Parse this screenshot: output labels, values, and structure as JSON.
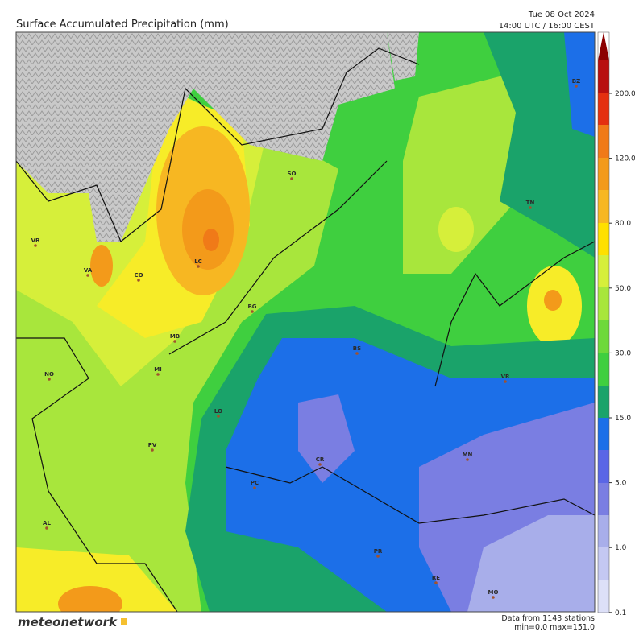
{
  "header": {
    "title": "Surface Accumulated Precipitation (mm)",
    "date": "Tue 08 Oct 2024",
    "time": "14:00 UTC / 16:00 CEST"
  },
  "colorbar": {
    "labels": [
      "200.0",
      "120.0",
      "80.0",
      "50.0",
      "30.0",
      "15.0",
      "5.0",
      "1.0",
      "0.1"
    ]
  },
  "cities": [
    {
      "label": "BZ"
    },
    {
      "label": "SO"
    },
    {
      "label": "TN"
    },
    {
      "label": "VB"
    },
    {
      "label": "LC"
    },
    {
      "label": "VA"
    },
    {
      "label": "CO"
    },
    {
      "label": "BG"
    },
    {
      "label": "MB"
    },
    {
      "label": "BS"
    },
    {
      "label": "MI"
    },
    {
      "label": "NO"
    },
    {
      "label": "VR"
    },
    {
      "label": "LO"
    },
    {
      "label": "PV"
    },
    {
      "label": "MN"
    },
    {
      "label": "CR"
    },
    {
      "label": "PC"
    },
    {
      "label": "AL"
    },
    {
      "label": "PR"
    },
    {
      "label": "RE"
    },
    {
      "label": "MO"
    }
  ],
  "footer": {
    "logo": "meteonetwork",
    "stations": "Data from 1143 stations",
    "minmax": "min=0.0 max=151.0"
  }
}
